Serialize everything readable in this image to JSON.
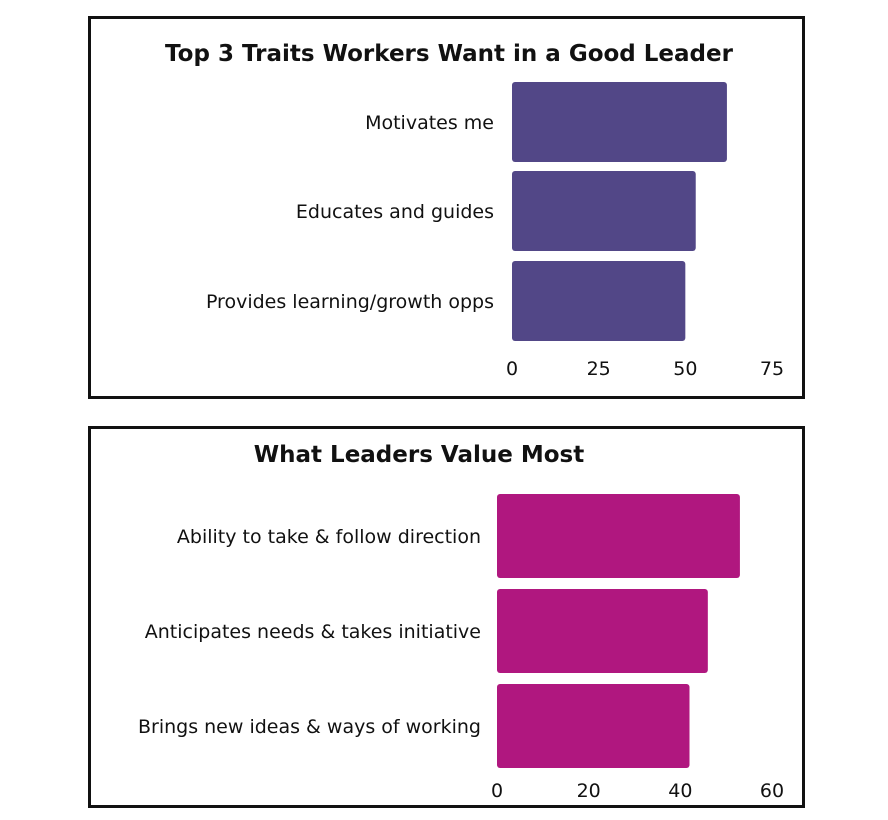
{
  "chart_data": [
    {
      "type": "bar",
      "orientation": "horizontal",
      "title": "Top 3 Traits Workers Want in a Good Leader",
      "xlabel": "",
      "ylabel": "",
      "categories": [
        "Motivates me",
        "Educates and guides",
        "Provides learning/growth opps"
      ],
      "values": [
        62,
        53,
        50
      ],
      "xlim": [
        0,
        75
      ],
      "ticks": [
        0,
        25,
        50,
        75
      ],
      "tick_labels": [
        "0",
        "25",
        "50",
        "75"
      ],
      "grid": false,
      "color": "#524787"
    },
    {
      "type": "bar",
      "orientation": "horizontal",
      "title": "What Leaders Value Most",
      "xlabel": "",
      "ylabel": "",
      "categories": [
        "Ability to take & follow direction",
        "Anticipates needs & takes initiative",
        "Brings new ideas & ways of working"
      ],
      "values": [
        53,
        46,
        42
      ],
      "xlim": [
        0,
        60
      ],
      "ticks": [
        0,
        20,
        40,
        60
      ],
      "tick_labels": [
        "0",
        "20",
        "40",
        "60"
      ],
      "grid": false,
      "color": "#B0177F"
    }
  ]
}
